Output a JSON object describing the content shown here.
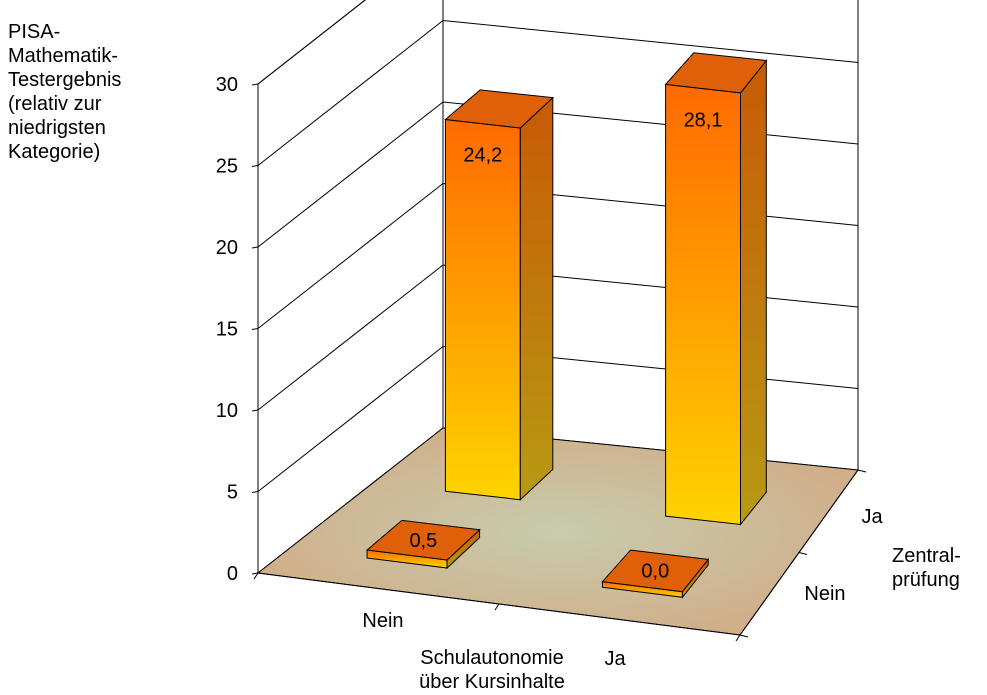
{
  "chart_data": {
    "type": "bar",
    "variant": "3d-bar",
    "title": "",
    "ylabel": "PISA-\nMathematik-\nTestergebnis\n(relativ zur\nniedrigsten\nKategorie)",
    "xlabel": "Schulautonomie\nüber Kursinhalte",
    "zlabel": "Zentral-\nprüfung",
    "x_categories": [
      "Nein",
      "Ja"
    ],
    "z_categories": [
      "Nein",
      "Ja"
    ],
    "yticks": [
      0,
      5,
      10,
      15,
      20,
      25,
      30
    ],
    "ylim": [
      0,
      30
    ],
    "grid": true,
    "series": [
      {
        "name": "Nein",
        "values": [
          0.5,
          0.0
        ],
        "labels": [
          "0,5",
          "0,0"
        ]
      },
      {
        "name": "Ja",
        "values": [
          24.2,
          28.1
        ],
        "labels": [
          "24,2",
          "28,1"
        ]
      }
    ],
    "colors": {
      "bar_top": "#ff6a00",
      "bar_bottom": "#ffd400",
      "bar_side": "#c26a10",
      "bar_cap": "#e0600a",
      "floor": "#d2ab85",
      "floor_glow": "#c9ceb0"
    }
  }
}
